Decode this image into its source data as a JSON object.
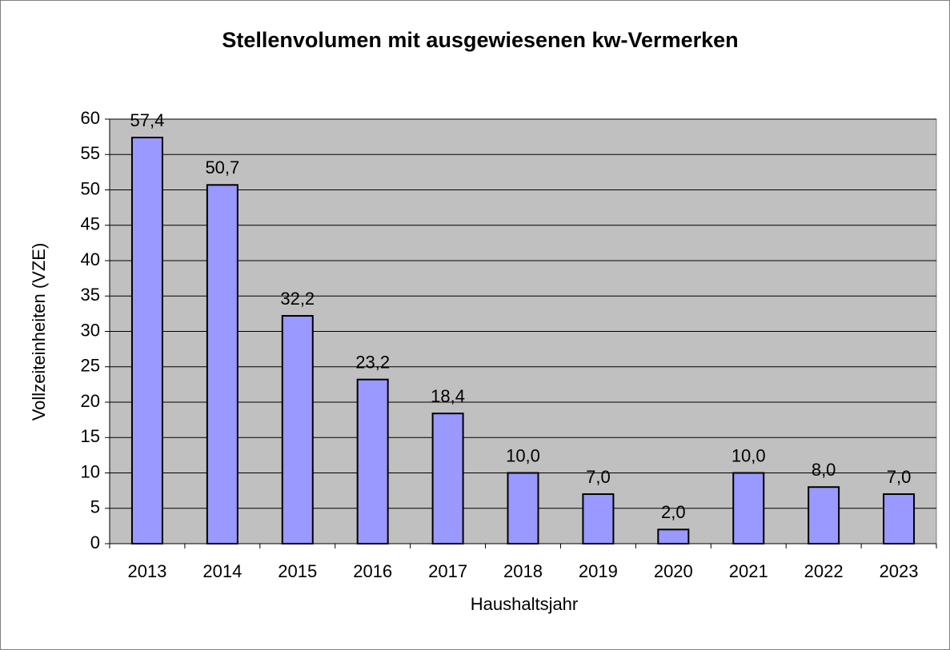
{
  "chart_data": {
    "type": "bar",
    "title": "Stellenvolumen mit ausgewiesenen kw-Vermerken",
    "x_label": "Haushaltsjahr",
    "y_label": "Vollzeiteinheiten (VZE)",
    "categories": [
      "2013",
      "2014",
      "2015",
      "2016",
      "2017",
      "2018",
      "2019",
      "2020",
      "2021",
      "2022",
      "2023"
    ],
    "values": [
      57.4,
      50.7,
      32.2,
      23.2,
      18.4,
      10.0,
      7.0,
      2.0,
      10.0,
      8.0,
      7.0
    ],
    "value_labels": [
      "57,4",
      "50,7",
      "32,2",
      "23,2",
      "18,4",
      "10,0",
      "7,0",
      "2,0",
      "10,0",
      "8,0",
      "7,0"
    ],
    "color": "#9999ff",
    "ylim": [
      0,
      60
    ],
    "yticks": [
      0,
      5,
      10,
      15,
      20,
      25,
      30,
      35,
      40,
      45,
      50,
      55,
      60
    ],
    "grid": true
  }
}
